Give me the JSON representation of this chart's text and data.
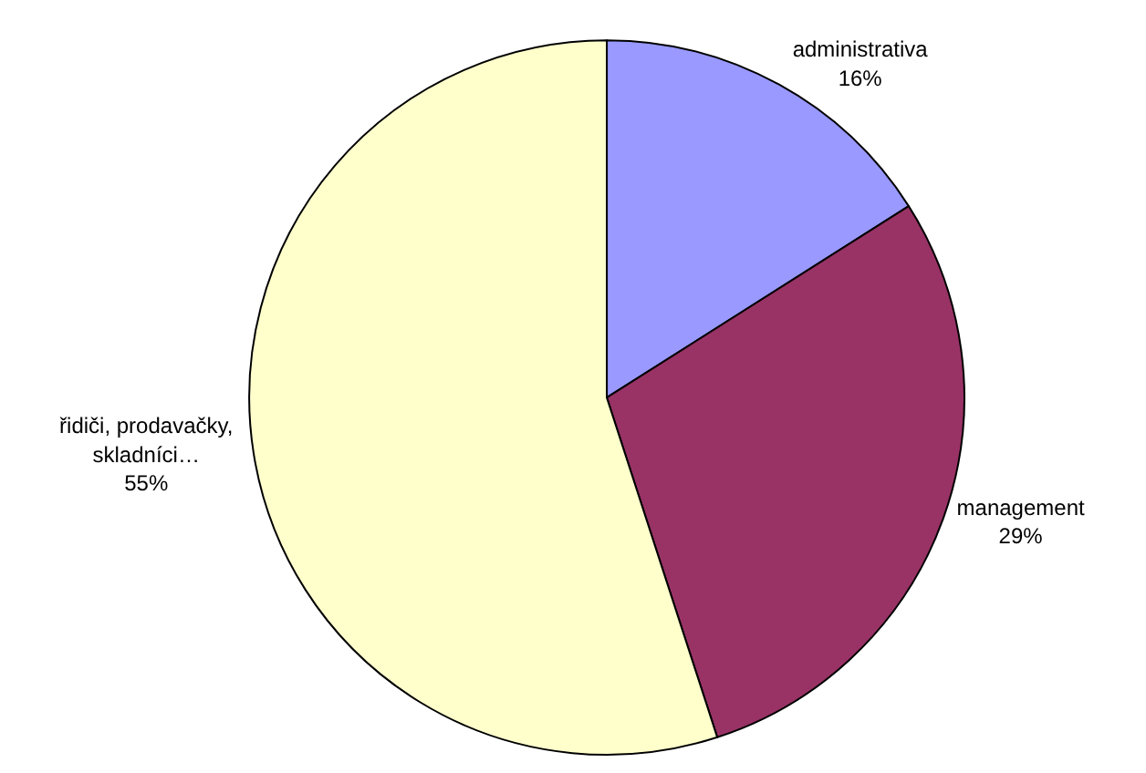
{
  "chart_data": {
    "type": "pie",
    "categories": [
      "administrativa",
      "management",
      "řidiči, prodavačky, skladníci…"
    ],
    "values": [
      16,
      29,
      55
    ],
    "value_labels": [
      "16%",
      "29%",
      "55%"
    ],
    "colors": [
      "#9999ff",
      "#993366",
      "#ffffcc"
    ],
    "legend": false
  }
}
